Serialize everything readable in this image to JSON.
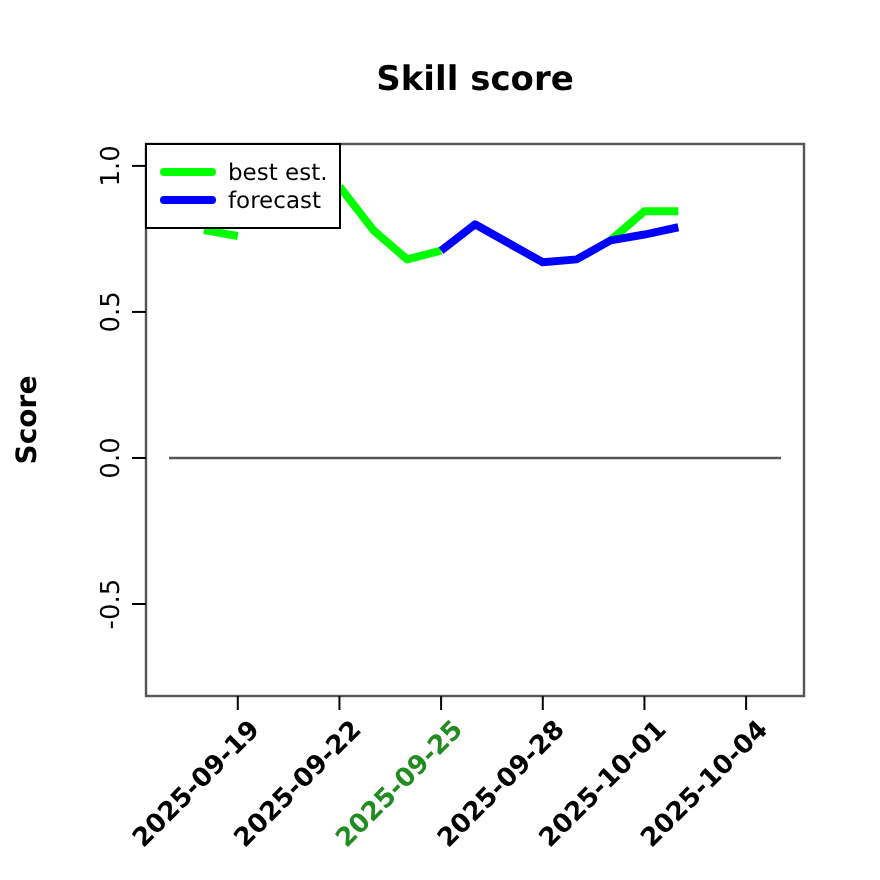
{
  "chart_data": {
    "type": "line",
    "title": "Skill score",
    "ylabel": "Score",
    "x": [
      "2025-09-18",
      "2025-09-19",
      "2025-09-20",
      "2025-09-21",
      "2025-09-22",
      "2025-09-23",
      "2025-09-24",
      "2025-09-25",
      "2025-09-26",
      "2025-09-27",
      "2025-09-28",
      "2025-09-29",
      "2025-09-30",
      "2025-10-01",
      "2025-10-02"
    ],
    "series": [
      {
        "name": "best est.",
        "color": "#00ff00",
        "values": [
          0.78,
          0.76,
          null,
          null,
          0.93,
          0.78,
          0.68,
          0.71,
          null,
          null,
          null,
          null,
          0.745,
          0.845,
          0.845
        ]
      },
      {
        "name": "forecast",
        "color": "#0000ff",
        "x": [
          "2025-09-25",
          "2025-09-26",
          "2025-09-27",
          "2025-09-28",
          "2025-09-29",
          "2025-09-30",
          "2025-10-01",
          "2025-10-02"
        ],
        "values": [
          0.71,
          0.8,
          0.735,
          0.67,
          0.68,
          0.745,
          0.765,
          0.79
        ]
      }
    ],
    "ref_lines": [
      {
        "axis": "y",
        "value": 0,
        "color": "#555555"
      }
    ],
    "xlim": [
      "2025-09-16T07:00",
      "2025-10-05T17:00"
    ],
    "xticks": [
      "2025-09-19",
      "2025-09-22",
      "2025-09-25",
      "2025-09-28",
      "2025-10-01",
      "2025-10-04"
    ],
    "ylim": [
      -0.815,
      1.075
    ],
    "yticks": [
      {
        "value": 1,
        "label": "1.0"
      },
      0.5,
      {
        "value": 0,
        "label": "0.0"
      },
      -0.5
    ],
    "legend": "top left",
    "grid": false,
    "marker": "none",
    "line_style": "solid"
  }
}
